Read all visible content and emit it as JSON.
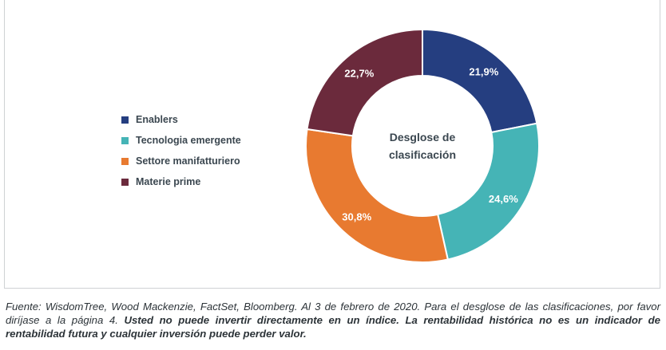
{
  "chart_data": {
    "type": "pie",
    "variant": "donut",
    "center_label": [
      "Desglose de",
      "clasificación"
    ],
    "slices": [
      {
        "label": "Enablers",
        "value": 21.9,
        "display": "21,9%",
        "color": "#253e80"
      },
      {
        "label": "Tecnologia emergente",
        "value": 24.6,
        "display": "24,6%",
        "color": "#45b4b6"
      },
      {
        "label": "Settore manifatturiero",
        "value": 30.8,
        "display": "30,8%",
        "color": "#e87a30"
      },
      {
        "label": "Materie prime",
        "value": 22.7,
        "display": "22,7%",
        "color": "#6b2a3c"
      }
    ],
    "legend_position": "left"
  },
  "footnote": {
    "source": "Fuente: WisdomTree, Wood Mackenzie, FactSet, Bloomberg. Al 3 de febrero de 2020. Para el desglose de las clasificaciones, por favor diríjase a la página 4. ",
    "disclaimer": "Usted no puede invertir directamente en un índice. La rentabilidad histórica no es un indicador de rentabilidad futura y cualquier inversión puede perder valor."
  }
}
